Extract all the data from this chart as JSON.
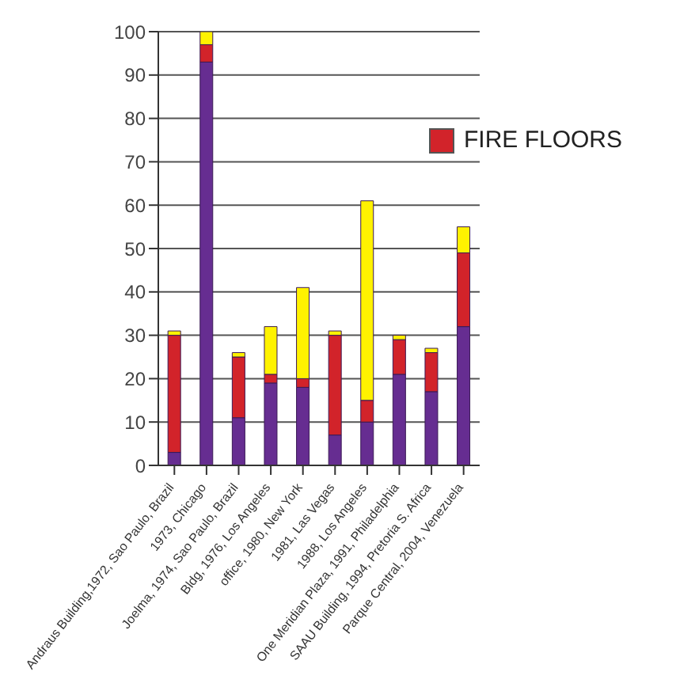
{
  "chart_data": {
    "type": "bar",
    "stacked": true,
    "categories": [
      "Andraus Building,1972, Sao Paulo, Brazil",
      "1973, Chicago",
      "Joelma, 1974, Sao Paulo, Brazil",
      "Bldg, 1976, Los Angeles",
      "office, 1980, New York",
      "1981, Las Vegas",
      "1988, Los Angeles",
      "One Meridian Plaza, 1991, Philadelphia",
      "SAAU Building, 1994, Pretoria S. Africa",
      "Parque Central, 2004, Venezuela"
    ],
    "series": [
      {
        "color": "#662d91",
        "values": [
          3,
          93,
          11,
          19,
          18,
          7,
          10,
          21,
          17,
          32
        ]
      },
      {
        "name": "FIRE FLOORS",
        "color": "#d2232a",
        "values": [
          27,
          4,
          14,
          2,
          2,
          23,
          5,
          8,
          9,
          17
        ]
      },
      {
        "color": "#fff200",
        "values": [
          1,
          3,
          1,
          11,
          21,
          1,
          46,
          1,
          1,
          6
        ]
      }
    ],
    "ylim": [
      0,
      100
    ],
    "yticks": [
      0,
      10,
      20,
      30,
      40,
      50,
      60,
      70,
      80,
      90,
      100
    ],
    "grid": "y",
    "legend": "top right"
  }
}
